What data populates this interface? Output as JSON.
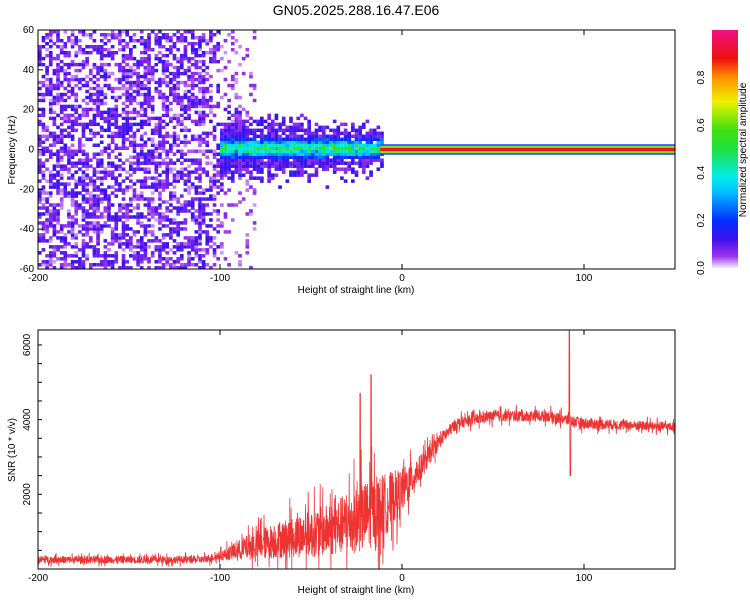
{
  "chart_data": [
    {
      "type": "heatmap",
      "title": "GN05.2025.288.16.47.E06",
      "xlabel": "Height of straight line (km)",
      "ylabel": "Frequency (Hz)",
      "xlim": [
        -200,
        150
      ],
      "ylim": [
        -60,
        60
      ],
      "xticks": [
        "-200",
        "-100",
        "0",
        "100"
      ],
      "yticks": [
        "-60",
        "-40",
        "-20",
        "0",
        "20",
        "40",
        "60"
      ],
      "colorbar": {
        "label": "Normalized spectral amplitude",
        "range": [
          0,
          1
        ],
        "ticks": [
          "0.0",
          "0.2",
          "0.4",
          "0.6",
          "0.8"
        ]
      },
      "regions": [
        {
          "x_range": [
            -200,
            -100
          ],
          "description": "broadband noise",
          "freq_range": [
            -60,
            60
          ],
          "amplitude": 0.1
        },
        {
          "x_range": [
            -100,
            -10
          ],
          "freq_range": [
            -15,
            15
          ],
          "core_freq_range": [
            -5,
            5
          ],
          "amplitude": 0.35
        },
        {
          "x_range": [
            -10,
            150
          ],
          "freq_range": [
            -2.5,
            2.5
          ],
          "peak_freq": 0,
          "amplitude": 0.95
        }
      ]
    },
    {
      "type": "line",
      "xlabel": "Height of straight line (km)",
      "ylabel": "SNR (10 * v/v)",
      "xlim": [
        -200,
        150
      ],
      "ylim": [
        0,
        6400
      ],
      "xticks": [
        "-200",
        "-100",
        "0",
        "100"
      ],
      "yticks": [
        "2000",
        "4000",
        "6000"
      ],
      "series": [
        {
          "name": "SNR",
          "color": "#ee3333",
          "envelope_x": [
            -200,
            -110,
            -100,
            -80,
            -60,
            -40,
            -20,
            -10,
            0,
            10,
            20,
            30,
            50,
            80,
            100,
            150
          ],
          "envelope_y": [
            250,
            250,
            350,
            650,
            850,
            1050,
            1400,
            1700,
            2100,
            2700,
            3400,
            3900,
            4100,
            4100,
            3900,
            3800
          ],
          "noise_y": [
            200,
            200,
            250,
            800,
            1100,
            1400,
            1900,
            1700,
            1200,
            700,
            400,
            300,
            300,
            300,
            300,
            250
          ],
          "spikes": [
            {
              "x": -17,
              "y": 5200
            },
            {
              "x": -23,
              "y": 4700
            },
            {
              "x": 92,
              "y": 6400
            },
            {
              "x": 92.5,
              "y": 2500
            }
          ]
        }
      ]
    }
  ]
}
